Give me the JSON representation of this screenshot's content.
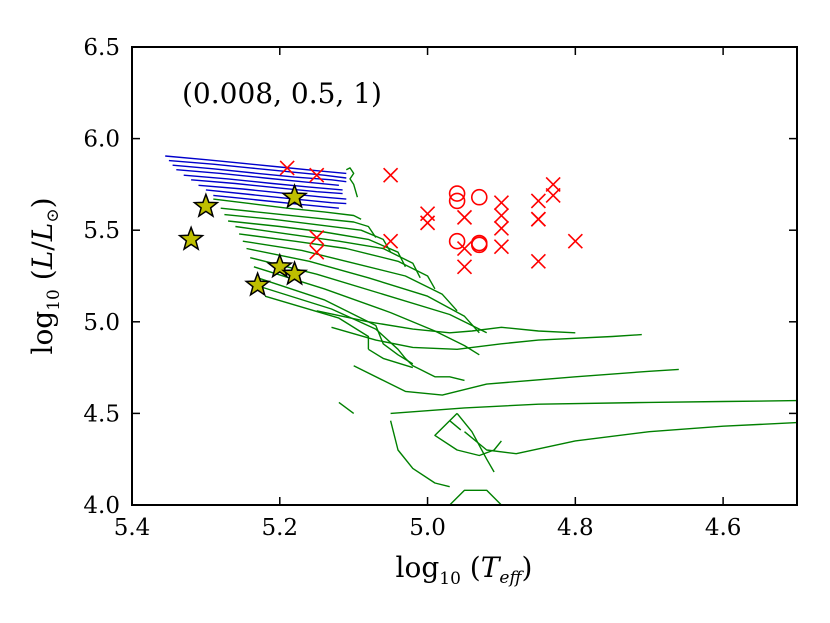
{
  "chart_data": {
    "type": "scatter",
    "title": "",
    "annotation": "(0.008, 0.5, 1)",
    "xlabel": "log10(Teff)",
    "ylabel": "log10(L/L⊙)",
    "xlim": [
      5.4,
      4.5
    ],
    "ylim": [
      4.0,
      6.5
    ],
    "x_ticks": [
      5.4,
      5.2,
      5.0,
      4.8,
      4.6
    ],
    "y_ticks": [
      4.0,
      4.5,
      5.0,
      5.5,
      6.0,
      6.5
    ],
    "x_tick_labels": [
      "5.4",
      "5.2",
      "5.0",
      "4.8",
      "4.6"
    ],
    "y_tick_labels": [
      "4.0",
      "4.5",
      "5.0",
      "5.5",
      "6.0",
      "6.5"
    ],
    "grid": false,
    "colors": {
      "blue_tracks": "#0000cc",
      "green_tracks": "#008000",
      "crosses": "#ff0000",
      "circles": "#ff0000",
      "stars_fill": "#bfbf00",
      "stars_edge": "#000000"
    },
    "series": [
      {
        "name": "blue_tracks",
        "marker": "line",
        "lines": [
          [
            [
              5.355,
              5.905
            ],
            [
              5.3,
              5.885
            ],
            [
              5.25,
              5.865
            ],
            [
              5.2,
              5.845
            ],
            [
              5.15,
              5.825
            ],
            [
              5.11,
              5.81
            ]
          ],
          [
            [
              5.35,
              5.88
            ],
            [
              5.29,
              5.86
            ],
            [
              5.24,
              5.84
            ],
            [
              5.19,
              5.82
            ],
            [
              5.14,
              5.8
            ],
            [
              5.11,
              5.785
            ]
          ],
          [
            [
              5.345,
              5.855
            ],
            [
              5.29,
              5.835
            ],
            [
              5.23,
              5.81
            ],
            [
              5.18,
              5.79
            ],
            [
              5.13,
              5.775
            ],
            [
              5.11,
              5.765
            ]
          ],
          [
            [
              5.34,
              5.83
            ],
            [
              5.28,
              5.81
            ],
            [
              5.22,
              5.785
            ],
            [
              5.17,
              5.765
            ],
            [
              5.12,
              5.745
            ]
          ],
          [
            [
              5.33,
              5.8
            ],
            [
              5.27,
              5.78
            ],
            [
              5.21,
              5.755
            ],
            [
              5.16,
              5.735
            ],
            [
              5.115,
              5.72
            ]
          ],
          [
            [
              5.32,
              5.775
            ],
            [
              5.26,
              5.755
            ],
            [
              5.2,
              5.73
            ],
            [
              5.15,
              5.71
            ],
            [
              5.115,
              5.7
            ]
          ],
          [
            [
              5.31,
              5.745
            ],
            [
              5.25,
              5.725
            ],
            [
              5.19,
              5.7
            ],
            [
              5.14,
              5.68
            ],
            [
              5.11,
              5.67
            ]
          ],
          [
            [
              5.3,
              5.72
            ],
            [
              5.24,
              5.695
            ],
            [
              5.18,
              5.67
            ],
            [
              5.13,
              5.65
            ],
            [
              5.11,
              5.645
            ]
          ],
          [
            [
              5.29,
              5.69
            ],
            [
              5.23,
              5.665
            ],
            [
              5.17,
              5.64
            ],
            [
              5.12,
              5.62
            ]
          ]
        ]
      },
      {
        "name": "green_tracks",
        "marker": "line",
        "lines": [
          [
            [
              5.11,
              5.83
            ],
            [
              5.105,
              5.84
            ],
            [
              5.1,
              5.81
            ],
            [
              5.105,
              5.78
            ],
            [
              5.1,
              5.75
            ],
            [
              5.095,
              5.68
            ]
          ],
          [
            [
              5.29,
              5.67
            ],
            [
              5.24,
              5.645
            ],
            [
              5.19,
              5.62
            ],
            [
              5.14,
              5.6
            ],
            [
              5.1,
              5.58
            ],
            [
              5.09,
              5.56
            ]
          ],
          [
            [
              5.28,
              5.62
            ],
            [
              5.22,
              5.595
            ],
            [
              5.16,
              5.57
            ],
            [
              5.1,
              5.545
            ],
            [
              5.08,
              5.52
            ],
            [
              5.07,
              5.46
            ]
          ],
          [
            [
              5.275,
              5.585
            ],
            [
              5.21,
              5.56
            ],
            [
              5.15,
              5.53
            ],
            [
              5.09,
              5.5
            ],
            [
              5.06,
              5.45
            ],
            [
              5.05,
              5.38
            ]
          ],
          [
            [
              5.27,
              5.55
            ],
            [
              5.2,
              5.52
            ],
            [
              5.14,
              5.49
            ],
            [
              5.08,
              5.45
            ],
            [
              5.04,
              5.38
            ],
            [
              5.03,
              5.3
            ]
          ],
          [
            [
              5.26,
              5.52
            ],
            [
              5.19,
              5.48
            ],
            [
              5.12,
              5.44
            ],
            [
              5.06,
              5.4
            ],
            [
              5.02,
              5.32
            ],
            [
              5.01,
              5.24
            ]
          ],
          [
            [
              5.255,
              5.48
            ],
            [
              5.18,
              5.44
            ],
            [
              5.11,
              5.4
            ],
            [
              5.04,
              5.33
            ],
            [
              5.0,
              5.25
            ],
            [
              4.99,
              5.18
            ]
          ],
          [
            [
              5.25,
              5.44
            ],
            [
              5.17,
              5.39
            ],
            [
              5.1,
              5.32
            ],
            [
              5.03,
              5.25
            ],
            [
              4.98,
              5.15
            ],
            [
              4.96,
              5.06
            ]
          ],
          [
            [
              5.245,
              5.4
            ],
            [
              5.16,
              5.33
            ],
            [
              5.08,
              5.24
            ],
            [
              5.0,
              5.14
            ],
            [
              4.95,
              5.03
            ],
            [
              4.93,
              4.94
            ]
          ],
          [
            [
              5.24,
              5.35
            ],
            [
              5.15,
              5.26
            ],
            [
              5.06,
              5.15
            ],
            [
              4.97,
              5.04
            ],
            [
              4.92,
              4.94
            ]
          ],
          [
            [
              5.235,
              5.3
            ],
            [
              5.14,
              5.18
            ],
            [
              5.05,
              5.05
            ],
            [
              4.99,
              4.95
            ],
            [
              4.95,
              4.87
            ],
            [
              4.93,
              4.82
            ]
          ],
          [
            [
              5.23,
              5.24
            ],
            [
              5.14,
              5.12
            ],
            [
              5.07,
              4.98
            ],
            [
              5.06,
              4.88
            ],
            [
              5.04,
              4.82
            ],
            [
              5.02,
              4.77
            ]
          ],
          [
            [
              5.225,
              5.19
            ],
            [
              5.13,
              5.07
            ],
            [
              5.07,
              4.96
            ],
            [
              5.04,
              4.85
            ],
            [
              5.03,
              4.8
            ],
            [
              5.02,
              4.76
            ],
            [
              5.01,
              4.74
            ],
            [
              5.0,
              4.72
            ],
            [
              4.99,
              4.7
            ],
            [
              4.97,
              4.7
            ],
            [
              4.95,
              4.68
            ]
          ],
          [
            [
              5.22,
              5.14
            ],
            [
              5.12,
              5.02
            ],
            [
              5.08,
              4.92
            ],
            [
              5.08,
              4.85
            ]
          ],
          [
            [
              5.08,
              4.85
            ],
            [
              5.06,
              4.8
            ],
            [
              5.02,
              4.75
            ]
          ],
          [
            [
              5.15,
              5.06
            ],
            [
              5.08,
              5.0
            ],
            [
              5.02,
              4.96
            ],
            [
              4.97,
              4.94
            ],
            [
              4.94,
              4.95
            ],
            [
              4.9,
              4.97
            ],
            [
              4.85,
              4.95
            ],
            [
              4.8,
              4.94
            ]
          ],
          [
            [
              5.13,
              4.97
            ],
            [
              5.07,
              4.9
            ],
            [
              5.02,
              4.86
            ],
            [
              4.96,
              4.85
            ],
            [
              4.9,
              4.88
            ],
            [
              4.85,
              4.9
            ],
            [
              4.75,
              4.92
            ],
            [
              4.71,
              4.93
            ]
          ],
          [
            [
              5.1,
              4.76
            ],
            [
              5.06,
              4.68
            ],
            [
              5.03,
              4.62
            ],
            [
              4.98,
              4.6
            ],
            [
              4.92,
              4.66
            ],
            [
              4.8,
              4.7
            ],
            [
              4.7,
              4.73
            ],
            [
              4.66,
              4.74
            ]
          ],
          [
            [
              5.05,
              4.5
            ],
            [
              4.95,
              4.53
            ],
            [
              4.85,
              4.55
            ],
            [
              4.7,
              4.56
            ],
            [
              4.6,
              4.565
            ],
            [
              4.5,
              4.57
            ]
          ],
          [
            [
              4.95,
              4.4
            ],
            [
              4.92,
              4.3
            ],
            [
              4.88,
              4.28
            ],
            [
              4.8,
              4.35
            ],
            [
              4.7,
              4.4
            ],
            [
              4.6,
              4.43
            ],
            [
              4.5,
              4.45
            ]
          ],
          [
            [
              4.96,
              4.5
            ],
            [
              4.99,
              4.38
            ],
            [
              4.96,
              4.3
            ],
            [
              4.93,
              4.27
            ],
            [
              4.91,
              4.3
            ],
            [
              4.9,
              4.35
            ]
          ],
          [
            [
              4.96,
              4.5
            ],
            [
              4.94,
              4.4
            ],
            [
              4.92,
              4.25
            ],
            [
              4.91,
              4.18
            ]
          ],
          [
            [
              4.97,
              4.0
            ],
            [
              4.95,
              4.08
            ],
            [
              4.92,
              4.08
            ],
            [
              4.9,
              4.0
            ]
          ],
          [
            [
              5.05,
              4.46
            ],
            [
              5.04,
              4.3
            ],
            [
              5.02,
              4.2
            ],
            [
              4.99,
              4.12
            ],
            [
              4.97,
              4.1
            ]
          ],
          [
            [
              5.12,
              4.56
            ],
            [
              5.1,
              4.5
            ]
          ],
          [
            [
              4.97,
              4.46
            ],
            [
              4.955,
              4.41
            ]
          ]
        ]
      },
      {
        "name": "crosses",
        "marker": "x",
        "points": [
          [
            5.19,
            5.84
          ],
          [
            5.15,
            5.8
          ],
          [
            5.05,
            5.8
          ],
          [
            5.15,
            5.46
          ],
          [
            5.15,
            5.38
          ],
          [
            5.05,
            5.44
          ],
          [
            5.0,
            5.59
          ],
          [
            5.0,
            5.54
          ],
          [
            4.95,
            5.57
          ],
          [
            4.95,
            5.4
          ],
          [
            4.95,
            5.3
          ],
          [
            4.9,
            5.65
          ],
          [
            4.9,
            5.58
          ],
          [
            4.9,
            5.51
          ],
          [
            4.9,
            5.41
          ],
          [
            4.85,
            5.66
          ],
          [
            4.85,
            5.56
          ],
          [
            4.85,
            5.56
          ],
          [
            4.85,
            5.33
          ],
          [
            4.83,
            5.75
          ],
          [
            4.83,
            5.69
          ],
          [
            4.8,
            5.44
          ]
        ]
      },
      {
        "name": "circles",
        "marker": "o",
        "points": [
          [
            4.96,
            5.7
          ],
          [
            4.96,
            5.66
          ],
          [
            4.93,
            5.68
          ],
          [
            4.96,
            5.44
          ],
          [
            4.93,
            5.43
          ],
          [
            4.93,
            5.42
          ]
        ]
      },
      {
        "name": "stars",
        "marker": "*",
        "points": [
          [
            5.3,
            5.63
          ],
          [
            5.32,
            5.45
          ],
          [
            5.18,
            5.68
          ],
          [
            5.2,
            5.3
          ],
          [
            5.18,
            5.26
          ],
          [
            5.23,
            5.2
          ]
        ]
      }
    ]
  }
}
